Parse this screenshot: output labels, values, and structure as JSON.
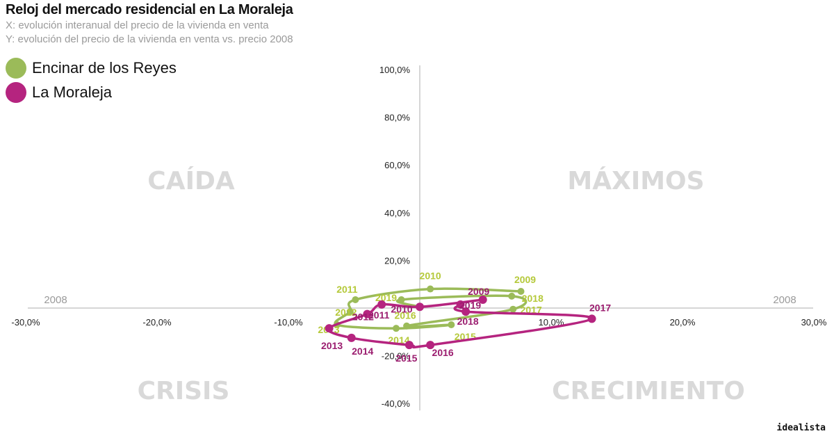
{
  "chart_data": {
    "type": "scatter",
    "title": "Reloj del mercado residencial en La Moraleja",
    "subtitle_x": "X: evolución interanual del precio de la vivienda en venta",
    "subtitle_y": "Y: evolución del precio de la vivienda en venta vs. precio 2008",
    "xlim": [
      -30,
      30
    ],
    "ylim": [
      -40,
      100
    ],
    "x_ticks": [
      -30,
      -20,
      -10,
      10,
      20,
      30
    ],
    "y_ticks": [
      100,
      80,
      60,
      40,
      20,
      -20,
      -40
    ],
    "x_tick_labels": [
      "-30,0%",
      "-20,0%",
      "-10,0%",
      "10,0%",
      "20,0%",
      "30,0%"
    ],
    "y_tick_labels": [
      "100,0%",
      "80,0%",
      "60,0%",
      "40,0%",
      "20,0%",
      "-20,0%",
      "-40,0%"
    ],
    "baseline_labels": [
      "2008",
      "2008"
    ],
    "quadrants": {
      "top_left": "CAÍDA",
      "top_right": "MÁXIMOS",
      "bottom_left": "CRISIS",
      "bottom_right": "CRECIMIENTO"
    },
    "legend_position": "top-left",
    "grid": false,
    "series": [
      {
        "name": "Encinar de los Reyes",
        "color": "#9bbb59",
        "label_color": "#b5c93a",
        "points": [
          {
            "year": "2009",
            "x": 7.7,
            "y": 7
          },
          {
            "year": "2010",
            "x": 0.8,
            "y": 8
          },
          {
            "year": "2011",
            "x": -4.9,
            "y": 3.5
          },
          {
            "year": "2012",
            "x": -5.3,
            "y": -1.5
          },
          {
            "year": "2013",
            "x": -6.3,
            "y": -7
          },
          {
            "year": "2014",
            "x": -1.8,
            "y": -8.5
          },
          {
            "year": "2015",
            "x": 2.4,
            "y": -7
          },
          {
            "year": "2016",
            "x": -1.0,
            "y": -7.5
          },
          {
            "year": "2017",
            "x": 7.1,
            "y": -0.5
          },
          {
            "year": "2018",
            "x": 7.0,
            "y": 5
          },
          {
            "year": "2019",
            "x": -1.4,
            "y": 3.5
          },
          {
            "year": "2010",
            "x": 0.0,
            "y": 0.5
          }
        ]
      },
      {
        "name": "La Moraleja",
        "color": "#b5247f",
        "label_color": "#9b1d6f",
        "points": [
          {
            "year": "2009",
            "x": 4.8,
            "y": 3.5
          },
          {
            "year": "2010",
            "x": 0.0,
            "y": 0.5
          },
          {
            "year": "2011",
            "x": -2.9,
            "y": 1.5
          },
          {
            "year": "2012",
            "x": -4.0,
            "y": -2.5
          },
          {
            "year": "2013",
            "x": -6.9,
            "y": -8.5
          },
          {
            "year": "2014",
            "x": -5.2,
            "y": -12.5
          },
          {
            "year": "2015",
            "x": -0.8,
            "y": -15.5
          },
          {
            "year": "2016",
            "x": 0.8,
            "y": -15.5
          },
          {
            "year": "2017",
            "x": 13.1,
            "y": -4.5
          },
          {
            "year": "2018",
            "x": 3.5,
            "y": -1.5
          },
          {
            "year": "2019",
            "x": 3.1,
            "y": 1.5
          }
        ]
      }
    ]
  },
  "footer": {
    "brand": "idealista"
  }
}
